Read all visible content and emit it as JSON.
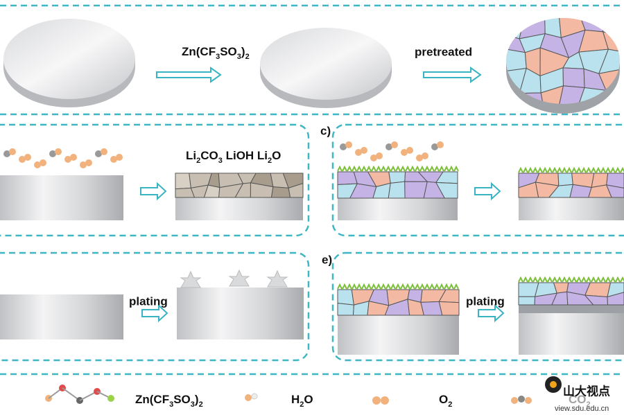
{
  "top": {
    "reagent": "Zn(CF3SO3)2",
    "step": "pretreated"
  },
  "panels": {
    "b": {
      "layer": "Li2CO3 LiOH Li2O"
    },
    "c": {
      "label": "c)"
    },
    "d": {
      "step": "plating"
    },
    "e": {
      "label": "e)",
      "step": "plating"
    }
  },
  "legend": [
    {
      "label": "Zn(CF3SO3)2"
    },
    {
      "label": "H2O"
    },
    {
      "label": "O2"
    },
    {
      "label": "CO2"
    }
  ],
  "watermark": {
    "name": "山大视点",
    "url": "view.sdu.edu.cn"
  }
}
